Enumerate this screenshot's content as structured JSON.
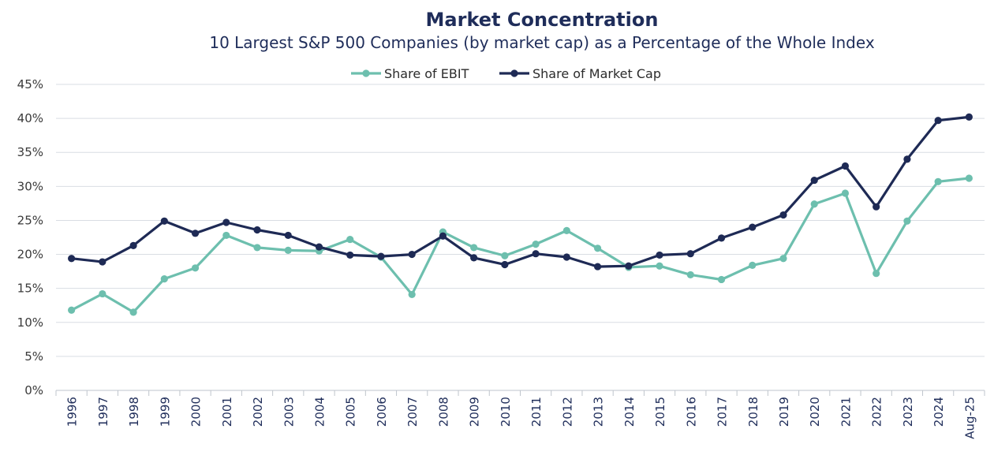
{
  "chart_data": {
    "type": "line",
    "title": "Market Concentration",
    "subtitle": "10 Largest S&P 500 Companies (by market cap) as a Percentage of the Whole Index",
    "xlabel": "",
    "ylabel": "",
    "ylim": [
      0,
      45
    ],
    "y_tick_labels": [
      "0%",
      "5%",
      "10%",
      "15%",
      "20%",
      "25%",
      "30%",
      "35%",
      "40%",
      "45%"
    ],
    "y_tick_values": [
      0,
      5,
      10,
      15,
      20,
      25,
      30,
      35,
      40,
      45
    ],
    "grid": "horizontal",
    "legend_position": "top-center",
    "categories": [
      "1996",
      "1997",
      "1998",
      "1999",
      "2000",
      "2001",
      "2002",
      "2003",
      "2004",
      "2005",
      "2006",
      "2007",
      "2008",
      "2009",
      "2010",
      "2011",
      "2012",
      "2013",
      "2014",
      "2015",
      "2016",
      "2017",
      "2018",
      "2019",
      "2020",
      "2021",
      "2022",
      "2023",
      "2024",
      "Aug-25"
    ],
    "series": [
      {
        "name": "Share of EBIT",
        "color": "#6dbfae",
        "values": [
          11.8,
          14.2,
          11.5,
          16.4,
          18.0,
          22.8,
          21.0,
          20.6,
          20.5,
          22.2,
          19.6,
          14.1,
          23.3,
          21.0,
          19.8,
          21.5,
          23.5,
          20.9,
          18.1,
          18.3,
          17.0,
          16.3,
          18.4,
          19.4,
          27.4,
          29.0,
          17.2,
          24.9,
          30.7,
          31.2
        ]
      },
      {
        "name": "Share of Market Cap",
        "color": "#1e2a55",
        "values": [
          19.4,
          18.9,
          21.3,
          24.9,
          23.1,
          24.7,
          23.6,
          22.8,
          21.1,
          19.9,
          19.7,
          20.0,
          22.7,
          19.5,
          18.5,
          20.1,
          19.6,
          18.2,
          18.3,
          19.9,
          20.1,
          22.4,
          24.0,
          25.8,
          30.9,
          33.0,
          27.0,
          34.0,
          39.7,
          40.2
        ]
      }
    ]
  }
}
